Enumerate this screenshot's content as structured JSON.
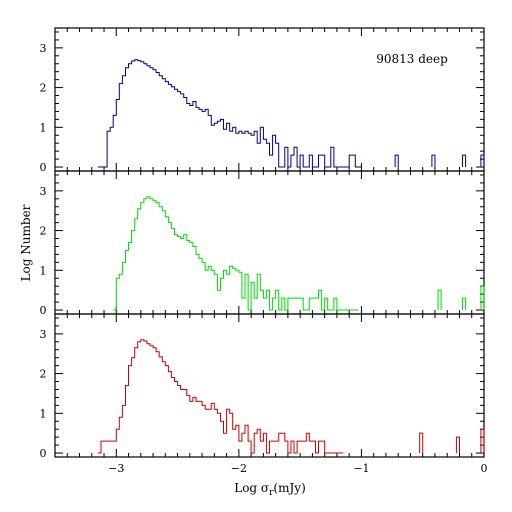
{
  "chart_data": {
    "type": "histogram",
    "annotation": "90813 deep",
    "xlabel_prefix": "Log σ",
    "xlabel_sub": "r",
    "xlabel_suffix": "(mJy)",
    "ylabel": "Log Number",
    "xlim": [
      -3.5,
      0
    ],
    "ylim": [
      -0.1,
      3.5
    ],
    "x_ticks": [
      -3,
      -2,
      -1,
      0
    ],
    "x_tick_labels": [
      "−3",
      "−2",
      "−1",
      "0"
    ],
    "y_ticks": [
      0,
      1,
      2,
      3
    ],
    "y_tick_labels": [
      "0",
      "1",
      "2",
      "3"
    ],
    "bin_width": 0.025,
    "panels": [
      {
        "color": "#00008b",
        "x": [
          -3.15,
          -3.125,
          -3.1,
          -3.075,
          -3.05,
          -3.025,
          -3,
          -2.975,
          -2.95,
          -2.925,
          -2.9,
          -2.875,
          -2.85,
          -2.825,
          -2.8,
          -2.775,
          -2.75,
          -2.725,
          -2.7,
          -2.675,
          -2.65,
          -2.625,
          -2.6,
          -2.575,
          -2.55,
          -2.525,
          -2.5,
          -2.475,
          -2.45,
          -2.425,
          -2.4,
          -2.375,
          -2.35,
          -2.325,
          -2.3,
          -2.275,
          -2.25,
          -2.225,
          -2.2,
          -2.175,
          -2.15,
          -2.125,
          -2.1,
          -2.075,
          -2.05,
          -2.025,
          -2,
          -1.975,
          -1.95,
          -1.925,
          -1.9,
          -1.875,
          -1.85,
          -1.825,
          -1.8,
          -1.775,
          -1.75,
          -1.725,
          -1.7,
          -1.675,
          -1.65,
          -1.625,
          -1.6,
          -1.575,
          -1.55,
          -1.525,
          -1.5,
          -1.475,
          -1.45,
          -1.425,
          -1.4,
          -1.375,
          -1.35,
          -1.325,
          -1.3,
          -1.275,
          -1.25,
          -1.225,
          -1.2,
          -1.175,
          -1.15,
          -1.125,
          -1.1,
          -1.075,
          -1.05,
          -1.025
        ],
        "y": [
          0,
          0,
          0,
          0.9,
          1,
          1.3,
          1.7,
          2.1,
          2.3,
          2.5,
          2.6,
          2.67,
          2.7,
          2.68,
          2.65,
          2.6,
          2.55,
          2.5,
          2.45,
          2.38,
          2.3,
          2.22,
          2.15,
          2.08,
          2.02,
          1.96,
          1.9,
          1.84,
          1.75,
          1.6,
          1.55,
          1.65,
          1.5,
          1.45,
          1.4,
          1.45,
          1.3,
          1.05,
          1.1,
          1.15,
          1.2,
          0.95,
          1.1,
          0.9,
          1.0,
          0.85,
          0.9,
          0.85,
          0.9,
          0.85,
          0.8,
          0.9,
          0.6,
          1.0,
          0.7,
          0.6,
          0.3,
          0.8,
          0.6,
          0,
          0,
          0.5,
          0,
          0.3,
          0.5,
          0,
          0.3,
          0,
          0,
          0.3,
          0,
          0,
          0.3,
          0.3,
          0,
          0,
          0.5,
          0,
          0,
          0,
          0,
          0,
          0.3,
          0.3,
          0,
          0
        ]
      },
      {
        "color": "#00dd00",
        "x": [
          -3.025,
          -3,
          -2.975,
          -2.95,
          -2.925,
          -2.9,
          -2.875,
          -2.85,
          -2.825,
          -2.8,
          -2.775,
          -2.75,
          -2.725,
          -2.7,
          -2.675,
          -2.65,
          -2.625,
          -2.6,
          -2.575,
          -2.55,
          -2.525,
          -2.5,
          -2.475,
          -2.45,
          -2.425,
          -2.4,
          -2.375,
          -2.35,
          -2.325,
          -2.3,
          -2.275,
          -2.25,
          -2.225,
          -2.2,
          -2.175,
          -2.15,
          -2.125,
          -2.1,
          -2.075,
          -2.05,
          -2.025,
          -2,
          -1.975,
          -1.95,
          -1.925,
          -1.9,
          -1.875,
          -1.85,
          -1.825,
          -1.8,
          -1.775,
          -1.75,
          -1.725,
          -1.7,
          -1.675,
          -1.65,
          -1.625,
          -1.6,
          -1.575,
          -1.55,
          -1.525,
          -1.5,
          -1.475,
          -1.45,
          -1.425,
          -1.4,
          -1.375,
          -1.35,
          -1.325,
          -1.3,
          -1.275,
          -1.25,
          -1.225,
          -1.2,
          -1.175,
          -1.15,
          -1.125,
          -1.1,
          -1.075,
          -1.05
        ],
        "y": [
          0,
          0.8,
          0.9,
          1.2,
          1.5,
          1.7,
          2.0,
          2.3,
          2.55,
          2.7,
          2.8,
          2.85,
          2.8,
          2.75,
          2.7,
          2.6,
          2.5,
          2.35,
          2.2,
          2.05,
          1.9,
          1.85,
          1.8,
          1.9,
          1.75,
          1.7,
          1.6,
          1.4,
          1.3,
          1.2,
          1.0,
          1.1,
          1.0,
          0.9,
          0.5,
          0.8,
          1.0,
          0.9,
          1.1,
          1.05,
          1.0,
          0.95,
          0.3,
          0.9,
          0,
          0.7,
          0.3,
          0.9,
          0.5,
          0.3,
          0.5,
          0,
          0.3,
          0.5,
          0,
          0.3,
          0,
          0.3,
          0.3,
          0.3,
          0.3,
          0.3,
          0,
          0,
          0.3,
          0.3,
          0.3,
          0.5,
          0,
          0.3,
          0,
          0,
          0.3,
          0,
          0,
          0,
          0,
          0,
          0,
          0
        ]
      },
      {
        "color": "#cc0000",
        "x": [
          -3.15,
          -3.125,
          -3.1,
          -3.075,
          -3.05,
          -3.025,
          -3,
          -2.975,
          -2.95,
          -2.925,
          -2.9,
          -2.875,
          -2.85,
          -2.825,
          -2.8,
          -2.775,
          -2.75,
          -2.725,
          -2.7,
          -2.675,
          -2.65,
          -2.625,
          -2.6,
          -2.575,
          -2.55,
          -2.525,
          -2.5,
          -2.475,
          -2.45,
          -2.425,
          -2.4,
          -2.375,
          -2.35,
          -2.325,
          -2.3,
          -2.275,
          -2.25,
          -2.225,
          -2.2,
          -2.175,
          -2.15,
          -2.125,
          -2.1,
          -2.075,
          -2.05,
          -2.025,
          -2,
          -1.975,
          -1.95,
          -1.925,
          -1.9,
          -1.875,
          -1.85,
          -1.825,
          -1.8,
          -1.775,
          -1.75,
          -1.725,
          -1.7,
          -1.675,
          -1.65,
          -1.625,
          -1.6,
          -1.575,
          -1.55,
          -1.525,
          -1.5,
          -1.475,
          -1.45,
          -1.425,
          -1.4,
          -1.375,
          -1.35,
          -1.325,
          -1.3,
          -1.275,
          -1.25,
          -1.225,
          -1.2,
          -1.175
        ],
        "y": [
          0,
          0.3,
          0.3,
          0.3,
          0.3,
          0.3,
          0.6,
          0.9,
          1.2,
          1.7,
          2.2,
          2.4,
          2.65,
          2.8,
          2.85,
          2.82,
          2.75,
          2.7,
          2.65,
          2.55,
          2.42,
          2.3,
          2.2,
          2.05,
          1.9,
          1.8,
          1.7,
          1.6,
          1.6,
          1.45,
          1.3,
          1.4,
          1.3,
          1.3,
          1.2,
          1.1,
          1.1,
          1.25,
          1.1,
          1.0,
          0.8,
          0.5,
          1.1,
          1.0,
          0.6,
          0.7,
          0.3,
          0.5,
          0.7,
          0.3,
          0,
          0.5,
          0.6,
          0.3,
          0.5,
          0,
          0.3,
          0.3,
          0.3,
          0.5,
          0.5,
          0.3,
          0,
          0.3,
          0,
          0.3,
          0.3,
          0.3,
          0.5,
          0.3,
          0.3,
          0,
          0.3,
          0.3,
          0,
          0,
          0,
          0,
          0,
          0
        ]
      }
    ],
    "panel_tails": [
      {
        "x": [
          -0.75,
          -0.725,
          -0.45,
          -0.425,
          -0.2,
          -0.175,
          -0.05,
          -0.025
        ],
        "y": [
          0,
          0.3,
          0,
          0.3,
          0,
          0.3,
          0,
          0.3
        ]
      },
      {
        "x": [
          -0.4,
          -0.375,
          -0.2,
          -0.175,
          -0.025
        ],
        "y": [
          0,
          0.5,
          0,
          0.3,
          0.6
        ]
      },
      {
        "x": [
          -0.55,
          -0.525,
          -0.25,
          -0.225,
          -0.025
        ],
        "y": [
          0,
          0.5,
          0,
          0.4,
          0.6
        ]
      }
    ]
  }
}
